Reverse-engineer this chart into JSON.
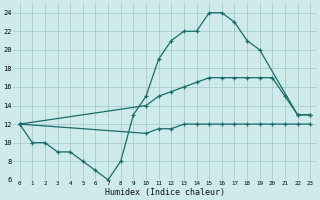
{
  "xlabel": "Humidex (Indice chaleur)",
  "bg_color": "#ceeaea",
  "grid_color": "#a8cccc",
  "line_color": "#1a6b6b",
  "xlim": [
    -0.5,
    23.5
  ],
  "ylim": [
    6,
    25
  ],
  "xticks": [
    0,
    1,
    2,
    3,
    4,
    5,
    6,
    7,
    8,
    9,
    10,
    11,
    12,
    13,
    14,
    15,
    16,
    17,
    18,
    19,
    20,
    21,
    22,
    23
  ],
  "yticks": [
    6,
    8,
    10,
    12,
    14,
    16,
    18,
    20,
    22,
    24
  ],
  "series": [
    {
      "x": [
        0,
        1,
        2,
        3,
        4,
        5,
        6,
        7,
        8,
        9,
        10,
        11,
        12,
        13,
        14,
        15,
        16,
        17,
        18,
        19,
        22,
        23
      ],
      "y": [
        12,
        10,
        10,
        9,
        9,
        8,
        7,
        6,
        8,
        13,
        15,
        19,
        21,
        22,
        22,
        24,
        24,
        23,
        21,
        20,
        13,
        13
      ]
    },
    {
      "x": [
        0,
        10,
        11,
        12,
        13,
        14,
        15,
        16,
        17,
        18,
        19,
        20,
        21,
        22,
        23
      ],
      "y": [
        12,
        14,
        15,
        15.5,
        16,
        16.5,
        17,
        17,
        17,
        17,
        17,
        17,
        15,
        13,
        13
      ]
    },
    {
      "x": [
        0,
        10,
        11,
        12,
        13,
        14,
        15,
        16,
        17,
        18,
        19,
        20,
        21,
        22,
        23
      ],
      "y": [
        12,
        11,
        11.5,
        11.5,
        12,
        12,
        12,
        12,
        12,
        12,
        12,
        12,
        12,
        12,
        12
      ]
    }
  ]
}
